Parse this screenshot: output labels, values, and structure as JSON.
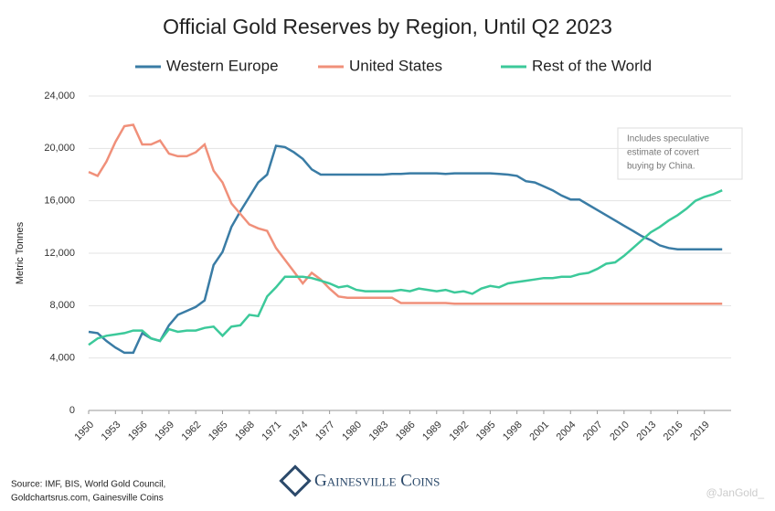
{
  "chart_data": {
    "type": "line",
    "title": "Official Gold Reserves by Region, Until Q2 2023",
    "y_label": "Metric Tonnes",
    "annotation": [
      "Includes speculative",
      "estimate of covert",
      "buying by China."
    ],
    "source": [
      "Source: IMF, BIS, World Gold Council,",
      "Goldchartsrus.com, Gainesville Coins"
    ],
    "brand": "Gainesville Coins",
    "watermark": "@JanGold_",
    "grid": true,
    "legend": "top",
    "x": [
      1950,
      1951,
      1952,
      1953,
      1954,
      1955,
      1956,
      1957,
      1958,
      1959,
      1960,
      1961,
      1962,
      1963,
      1964,
      1965,
      1966,
      1967,
      1968,
      1969,
      1970,
      1971,
      1972,
      1973,
      1974,
      1975,
      1976,
      1977,
      1978,
      1979,
      1980,
      1981,
      1982,
      1983,
      1984,
      1985,
      1986,
      1987,
      1988,
      1989,
      1990,
      1991,
      1992,
      1993,
      1994,
      1995,
      1996,
      1997,
      1998,
      1999,
      2000,
      2001,
      2002,
      2003,
      2004,
      2005,
      2006,
      2007,
      2008,
      2009,
      2010,
      2011,
      2012,
      2013,
      2014,
      2015,
      2016,
      2017,
      2018,
      2019,
      2020,
      2021
    ],
    "xlim": [
      1950,
      2022
    ],
    "xticks": [
      1950,
      1953,
      1956,
      1959,
      1962,
      1965,
      1968,
      1971,
      1974,
      1977,
      1980,
      1983,
      1986,
      1989,
      1992,
      1995,
      1998,
      2001,
      2004,
      2007,
      2010,
      2013,
      2016,
      2019
    ],
    "ylim": [
      0,
      24000
    ],
    "yticks": [
      0,
      {
        "value": 4000,
        "label": "4,000"
      },
      {
        "value": 8000,
        "label": "8,000"
      },
      {
        "value": 12000,
        "label": "12,000"
      },
      {
        "value": 16000,
        "label": "16,000"
      },
      {
        "value": 20000,
        "label": "20,000"
      },
      {
        "value": 24000,
        "label": "24,000"
      }
    ],
    "series": [
      {
        "name": "Western Europe",
        "color": "#3a7ca5",
        "values": [
          6000,
          5900,
          5300,
          4800,
          4400,
          4400,
          5900,
          5500,
          5300,
          6500,
          7300,
          7600,
          7900,
          8400,
          11100,
          12100,
          14000,
          15200,
          16300,
          17400,
          18000,
          20200,
          20100,
          19700,
          19200,
          18400,
          18000,
          18000,
          18000,
          18000,
          18000,
          18000,
          18000,
          18000,
          18050,
          18050,
          18100,
          18100,
          18100,
          18100,
          18050,
          18100,
          18100,
          18100,
          18100,
          18100,
          18050,
          18000,
          17900,
          17500,
          17400,
          17100,
          16800,
          16400,
          16100,
          16100,
          15700,
          15300,
          14900,
          14500,
          14100,
          13700,
          13300,
          13000,
          12600,
          12400,
          12300,
          12300,
          12300,
          12300,
          12300,
          12300
        ]
      },
      {
        "name": "United States",
        "color": "#f0907a",
        "values": [
          18200,
          17900,
          19000,
          20500,
          21700,
          21800,
          20300,
          20300,
          20600,
          19600,
          19400,
          19400,
          19700,
          20300,
          18300,
          17400,
          15800,
          15000,
          14200,
          13900,
          13700,
          12400,
          11500,
          10600,
          9700,
          10500,
          10000,
          9300,
          8700,
          8600,
          8600,
          8600,
          8600,
          8600,
          8600,
          8200,
          8200,
          8200,
          8200,
          8200,
          8200,
          8150,
          8150,
          8150,
          8150,
          8150,
          8150,
          8150,
          8150,
          8150,
          8150,
          8150,
          8150,
          8150,
          8150,
          8150,
          8150,
          8150,
          8150,
          8150,
          8150,
          8150,
          8150,
          8150,
          8150,
          8150,
          8150,
          8150,
          8150,
          8150,
          8150,
          8150
        ]
      },
      {
        "name": "Rest of the World",
        "color": "#3cc99a",
        "values": [
          5000,
          5500,
          5700,
          5800,
          5900,
          6100,
          6100,
          5500,
          5300,
          6200,
          6000,
          6100,
          6100,
          6300,
          6400,
          5700,
          6400,
          6500,
          7300,
          7200,
          8700,
          9400,
          10200,
          10200,
          10200,
          10100,
          9900,
          9700,
          9400,
          9500,
          9200,
          9100,
          9100,
          9100,
          9100,
          9200,
          9100,
          9300,
          9200,
          9100,
          9200,
          9000,
          9100,
          8900,
          9300,
          9500,
          9400,
          9700,
          9800,
          9900,
          10000,
          10100,
          10100,
          10200,
          10200,
          10400,
          10500,
          10800,
          11200,
          11300,
          11800,
          12400,
          13000,
          13600,
          14000,
          14500,
          14900,
          15400,
          16000,
          16300,
          16500,
          16800
        ]
      }
    ]
  }
}
